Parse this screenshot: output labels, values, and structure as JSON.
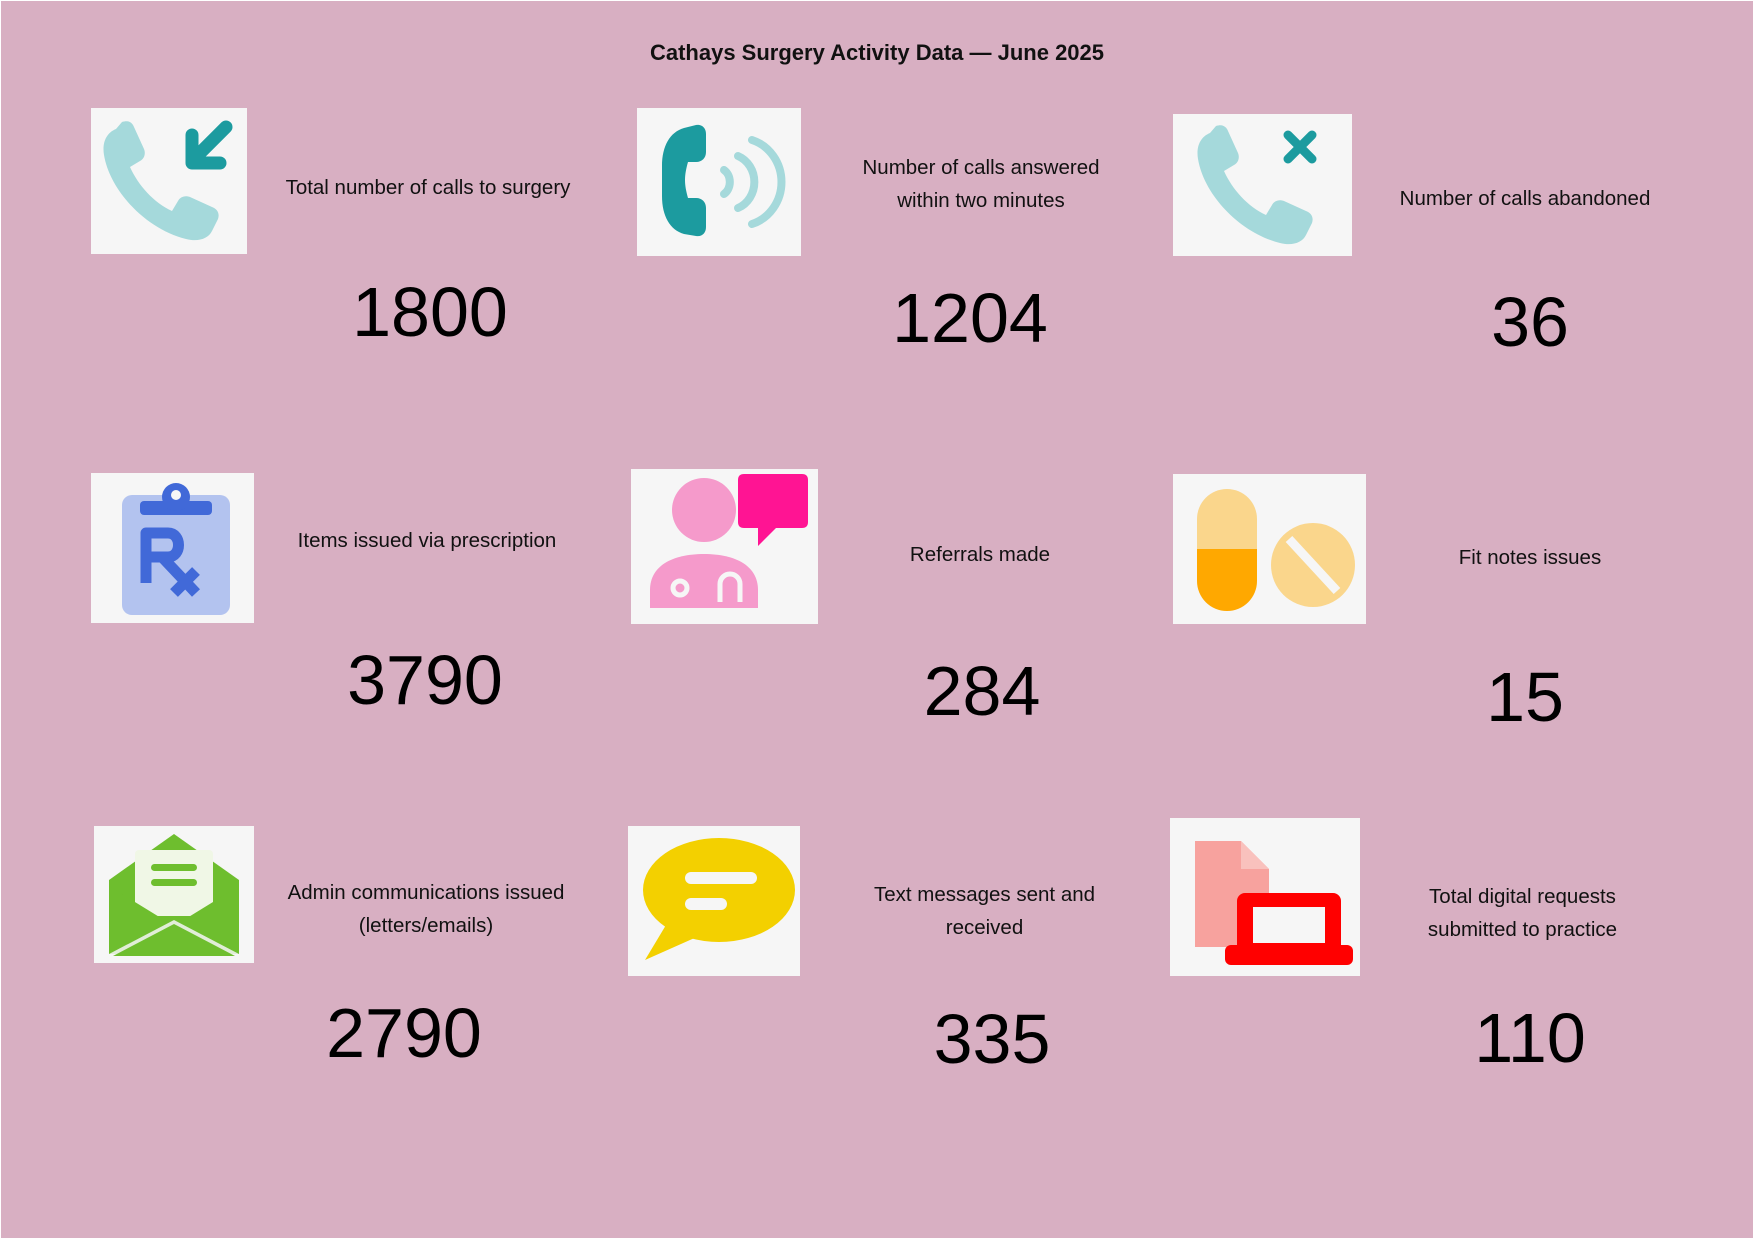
{
  "title": "Cathays Surgery Activity Data — June 2025",
  "colors": {
    "background": "#d8afc2",
    "tile": "#f6f6f6",
    "teal": "#1c9b9f",
    "teal_light": "#a5d9db"
  },
  "metrics": [
    {
      "label": "Total number of calls to surgery",
      "value": "1800",
      "icon": "incoming-call-icon"
    },
    {
      "label": "Number of calls answered within two minutes",
      "value": "1204",
      "icon": "phone-ringing-icon"
    },
    {
      "label": "Number of calls abandoned",
      "value": "36",
      "icon": "missed-call-icon"
    },
    {
      "label": "Items issued via prescription",
      "value": "3790",
      "icon": "prescription-clipboard-icon"
    },
    {
      "label": "Referrals made",
      "value": "284",
      "icon": "doctor-chat-icon"
    },
    {
      "label": "Fit notes issues",
      "value": "15",
      "icon": "pills-icon"
    },
    {
      "label": "Admin communications issued (letters/emails)",
      "value": "2790",
      "icon": "open-envelope-icon"
    },
    {
      "label": "Text messages sent and received",
      "value": "335",
      "icon": "speech-bubble-icon"
    },
    {
      "label": "Total digital requests submitted to practice",
      "value": "110",
      "icon": "laptop-document-icon"
    }
  ]
}
